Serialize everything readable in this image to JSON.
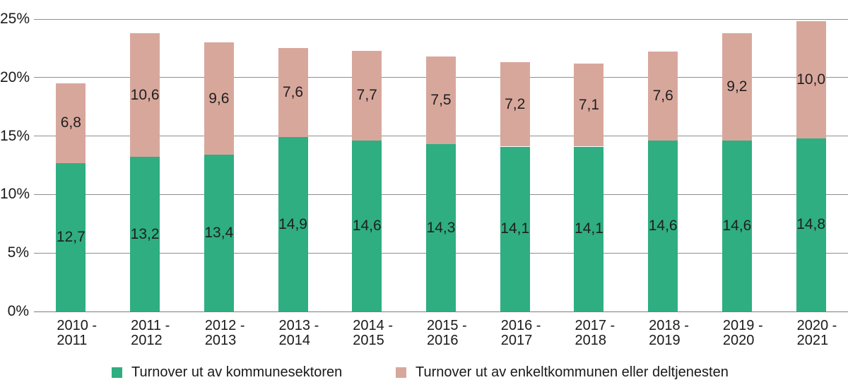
{
  "chart_data": {
    "type": "bar",
    "stacked": true,
    "title": "",
    "xlabel": "",
    "ylabel": "",
    "categories": [
      "2010 -\n2011",
      "2011 -\n2012",
      "2012 -\n2013",
      "2013 -\n2014",
      "2014 -\n2015",
      "2015 -\n2016",
      "2016 -\n2017",
      "2017 -\n2018",
      "2018 -\n2019",
      "2019 -\n2020",
      "2020 -\n2021"
    ],
    "series": [
      {
        "name": "Turnover ut av kommunesektoren",
        "color": "#2FAE81",
        "values": [
          12.7,
          13.2,
          13.4,
          14.9,
          14.6,
          14.3,
          14.1,
          14.1,
          14.6,
          14.6,
          14.8
        ],
        "labels": [
          "12,7",
          "13,2",
          "13,4",
          "14,9",
          "14,6",
          "14,3",
          "14,1",
          "14,1",
          "14,6",
          "14,6",
          "14,8"
        ]
      },
      {
        "name": "Turnover ut av enkeltkommunen eller deltjenesten",
        "color": "#D8A79C",
        "values": [
          6.8,
          10.6,
          9.6,
          7.6,
          7.7,
          7.5,
          7.2,
          7.1,
          7.6,
          9.2,
          10.0
        ],
        "labels": [
          "6,8",
          "10,6",
          "9,6",
          "7,6",
          "7,7",
          "7,5",
          "7,2",
          "7,1",
          "7,6",
          "9,2",
          "10,0"
        ]
      }
    ],
    "y_axis": {
      "max": 25,
      "ticks": [
        {
          "value": 0,
          "label": "0%"
        },
        {
          "value": 5,
          "label": "5%"
        },
        {
          "value": 10,
          "label": "10%"
        },
        {
          "value": 15,
          "label": "15%"
        },
        {
          "value": 20,
          "label": "20%"
        },
        {
          "value": 25,
          "label": "25%"
        }
      ]
    },
    "grid": true,
    "legend_position": "bottom"
  },
  "style": {
    "background": "#ffffff",
    "text_color": "#1a1a1a",
    "grid_color": "#8f8f8f",
    "axis_color": "#7d7d7d"
  }
}
